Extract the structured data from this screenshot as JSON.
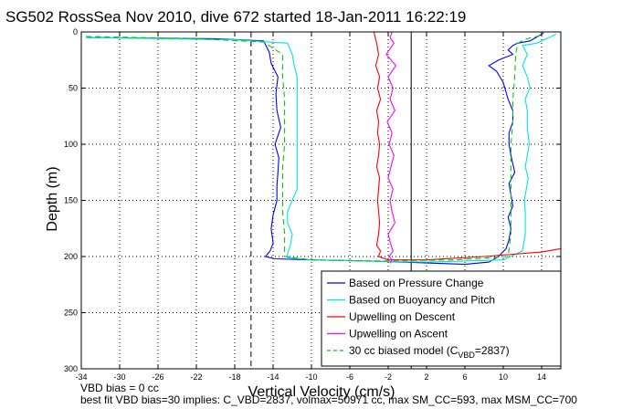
{
  "chart_data": {
    "type": "line",
    "title": "SG502 RossSea Nov 2010, dive 672 started 18-Jan-2011 16:22:19",
    "xlabel": "Vertical Velocity (cm/s)",
    "ylabel": "Depth (m)",
    "xlim": [
      -34,
      16
    ],
    "ylim": [
      300,
      0
    ],
    "y_reversed": true,
    "xticks": [
      -34,
      -30,
      -26,
      -22,
      -18,
      -14,
      -10,
      -6,
      -2,
      2,
      6,
      10,
      14
    ],
    "yticks": [
      0,
      50,
      100,
      150,
      200,
      250,
      300
    ],
    "grid": true,
    "legend_position": "bottom-right",
    "reference_lines": [
      {
        "axis": "x",
        "value": -16.3,
        "style": "dashed",
        "color": "#000000"
      },
      {
        "axis": "x",
        "value": 0.4,
        "style": "solid",
        "color": "#000000"
      }
    ],
    "series": [
      {
        "name": "Based on Pressure Change",
        "color": "#0000ff",
        "dash": "",
        "x": [
          -33.5,
          -20,
          -15,
          -14.4,
          -14.2,
          -13.5,
          -13.7,
          -13.6,
          -13.2,
          -13.8,
          -13.4,
          -13.5,
          -13.6,
          -13.6,
          -14.0,
          -14.2,
          -14.0,
          -14.3,
          -14.6,
          -14.8,
          -13.8,
          -10,
          -4,
          -0.5,
          6,
          8.5,
          9.5,
          10.3,
          10.6,
          10.8,
          10.5,
          11.0,
          10.8,
          10.6,
          11.2,
          10.8,
          10.6,
          10.6,
          11.0,
          11.0,
          10.5,
          10.0,
          9.3,
          8.5,
          9.5,
          11.0,
          10.5,
          11.0,
          11.5,
          12.8,
          13.2,
          13.8,
          14.2
        ],
        "y": [
          5,
          6,
          8,
          18,
          28,
          40,
          55,
          70,
          85,
          100,
          112,
          125,
          137,
          150,
          163,
          175,
          188,
          195,
          198,
          200,
          202,
          203,
          204,
          205,
          207,
          205,
          200,
          193,
          185,
          175,
          165,
          155,
          145,
          135,
          125,
          110,
          100,
          90,
          80,
          70,
          60,
          45,
          35,
          30,
          25,
          20,
          16,
          12,
          10,
          8,
          6,
          3,
          1
        ]
      },
      {
        "name": "Based on Buoyancy and Pitch",
        "color": "#00e5e5",
        "dash": "",
        "x": [
          -33.5,
          -18,
          -12.5,
          -12.0,
          -11.8,
          -11.5,
          -11.5,
          -11.5,
          -11.5,
          -11.5,
          -11.5,
          -11.5,
          -11.5,
          -12.0,
          -12.5,
          -12.5,
          -12.0,
          -12.2,
          -12.5,
          -12.5,
          -10,
          -5,
          2,
          10.0,
          12.0,
          12.3,
          12.3,
          12.2,
          12.4,
          12.6,
          12.3,
          12.5,
          12.7,
          12.5,
          12.5,
          12.3,
          12.5,
          12.8,
          12.5,
          12.0,
          12.5,
          12.2,
          12.0,
          13.5,
          14.5,
          15.5
        ],
        "y": [
          5,
          7,
          10,
          20,
          30,
          40,
          50,
          65,
          80,
          95,
          110,
          125,
          140,
          150,
          160,
          170,
          180,
          190,
          198,
          201,
          203,
          204,
          205,
          203,
          195,
          180,
          160,
          150,
          140,
          130,
          120,
          110,
          100,
          85,
          70,
          60,
          55,
          50,
          40,
          30,
          20,
          15,
          12,
          10,
          6,
          2
        ]
      },
      {
        "name": "Upwelling on Descent",
        "color": "#ff0000",
        "dash": "",
        "x": [
          -3.5,
          -3.2,
          -3.0,
          -3.3,
          -2.9,
          -3.1,
          -2.8,
          -3.2,
          -3.0,
          -3.1,
          -2.9,
          -3.0,
          -3.2,
          -2.9,
          -3.0,
          -3.1,
          -3.0,
          -2.9,
          -3.0,
          -3.2,
          -2.8,
          -3.0,
          -2.0,
          2,
          8,
          14,
          16
        ],
        "y": [
          0,
          10,
          20,
          30,
          40,
          50,
          60,
          70,
          80,
          90,
          100,
          110,
          120,
          130,
          140,
          150,
          160,
          170,
          180,
          190,
          195,
          200,
          203,
          203,
          200,
          196,
          193
        ]
      },
      {
        "name": "Upwelling on Ascent",
        "color": "#ff00ff",
        "dash": "",
        "x": [
          -1.6,
          -1.8,
          -1.4,
          -2.2,
          -1.2,
          -2.0,
          -1.5,
          -1.8,
          -1.3,
          -2.1,
          -1.6,
          -1.9,
          -1.4,
          -1.7,
          -2.0,
          -1.5,
          -1.8,
          -1.6,
          -1.3,
          -2.0,
          -1.7,
          -1.5,
          -1.9,
          -1.6,
          -1.8
        ],
        "y": [
          0,
          5,
          10,
          20,
          30,
          40,
          50,
          60,
          70,
          80,
          90,
          100,
          110,
          120,
          130,
          140,
          150,
          160,
          170,
          180,
          190,
          195,
          200,
          203,
          206
        ]
      },
      {
        "name": "30 cc biased model (C_VBD=2837)",
        "color": "#00cc00",
        "dash": "6,4",
        "x": [
          -33.5,
          -22,
          -15,
          -13.0,
          -13.0,
          -12.8,
          -12.8,
          -12.8,
          -13.0,
          -13.0,
          -13.0,
          -12.8,
          -12.8,
          -10,
          -3,
          5,
          10.5,
          10.8,
          10.8,
          10.8,
          10.8,
          10.8,
          11.0,
          11.0,
          11.2,
          11.3,
          11.5,
          12.5,
          14
        ],
        "y": [
          4,
          6,
          9,
          20,
          40,
          60,
          80,
          100,
          120,
          140,
          160,
          180,
          200,
          203,
          204,
          203,
          200,
          180,
          160,
          140,
          120,
          100,
          80,
          60,
          40,
          20,
          10,
          6,
          3
        ]
      }
    ],
    "legend_labels": [
      {
        "text": "Based on Pressure Change",
        "subscript": ""
      },
      {
        "text": "Based on Buoyancy and Pitch",
        "subscript": ""
      },
      {
        "text": "Upwelling on Descent",
        "subscript": ""
      },
      {
        "text": "Upwelling on Ascent",
        "subscript": ""
      },
      {
        "text": "30 cc biased model (C",
        "subscript": "VBD",
        "suffix": "=2837)"
      }
    ]
  },
  "footer": {
    "line1": "VBD bias = 0 cc",
    "line2": "best fit VBD bias=30 implies: C_VBD=2837, volmax=50971 cc, max SM_CC=593, max MSM_CC=700"
  }
}
